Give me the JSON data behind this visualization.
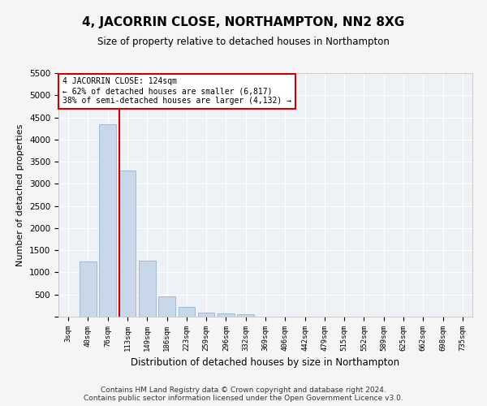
{
  "title": "4, JACORRIN CLOSE, NORTHAMPTON, NN2 8XG",
  "subtitle": "Size of property relative to detached houses in Northampton",
  "xlabel": "Distribution of detached houses by size in Northampton",
  "ylabel": "Number of detached properties",
  "footer_line1": "Contains HM Land Registry data © Crown copyright and database right 2024.",
  "footer_line2": "Contains public sector information licensed under the Open Government Licence v3.0.",
  "bar_color": "#c8d8ea",
  "bar_edge_color": "#a0bcd4",
  "background_color": "#eef2f7",
  "grid_color": "#ffffff",
  "annotation_text_line1": "4 JACORRIN CLOSE: 124sqm",
  "annotation_text_line2": "← 62% of detached houses are smaller (6,817)",
  "annotation_text_line3": "38% of semi-detached houses are larger (4,132) →",
  "red_line_color": "#cc0000",
  "annotation_box_edgecolor": "#cc0000",
  "categories": [
    "3sqm",
    "40sqm",
    "76sqm",
    "113sqm",
    "149sqm",
    "186sqm",
    "223sqm",
    "259sqm",
    "296sqm",
    "332sqm",
    "369sqm",
    "406sqm",
    "442sqm",
    "479sqm",
    "515sqm",
    "552sqm",
    "589sqm",
    "625sqm",
    "662sqm",
    "698sqm",
    "735sqm"
  ],
  "values": [
    0,
    1250,
    4350,
    3300,
    1260,
    450,
    220,
    100,
    80,
    50,
    0,
    0,
    0,
    0,
    0,
    0,
    0,
    0,
    0,
    0,
    0
  ],
  "ylim": [
    0,
    5500
  ],
  "yticks": [
    0,
    500,
    1000,
    1500,
    2000,
    2500,
    3000,
    3500,
    4000,
    4500,
    5000,
    5500
  ],
  "red_line_x": 2.575
}
